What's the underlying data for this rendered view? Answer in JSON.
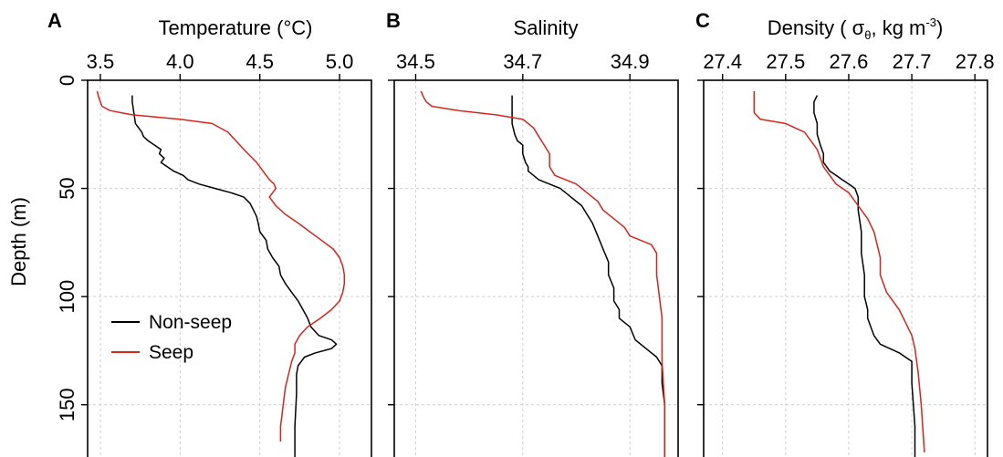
{
  "chart_data": [
    {
      "type": "line",
      "panel": "A",
      "title": "Temperature (°C)",
      "ylabel": "Depth (m)",
      "xlim": [
        3.42,
        5.2
      ],
      "ylim": [
        0,
        175
      ],
      "y_inverted": true,
      "x_axis_position": "top",
      "grid": true,
      "xticks": [
        "3.5",
        "4.0",
        "4.5",
        "5.0"
      ],
      "yticks": [
        "0",
        "50",
        "100",
        "150"
      ],
      "legend": {
        "position": "bottom-left",
        "entries": [
          "Non-seep",
          "Seep"
        ]
      },
      "series": [
        {
          "name": "Non-seep",
          "color": "#000000",
          "x": [
            3.7,
            3.7,
            3.71,
            3.72,
            3.74,
            3.76,
            3.77,
            3.8,
            3.84,
            3.88,
            3.87,
            3.9,
            3.88,
            3.92,
            3.96,
            4.02,
            4.05,
            4.12,
            4.22,
            4.32,
            4.4,
            4.44,
            4.46,
            4.48,
            4.49,
            4.5,
            4.54,
            4.55,
            4.58,
            4.62,
            4.63,
            4.66,
            4.7,
            4.74,
            4.77,
            4.8,
            4.82,
            4.87,
            4.95,
            4.98,
            4.95,
            4.85,
            4.78,
            4.74,
            4.73,
            4.73,
            4.72,
            4.72
          ],
          "y": [
            7,
            10,
            15,
            20,
            22,
            24,
            26,
            28,
            30,
            32,
            34,
            36,
            38,
            40,
            42,
            44,
            46,
            48,
            50,
            52,
            54,
            57,
            60,
            63,
            66,
            70,
            74,
            78,
            82,
            86,
            90,
            94,
            98,
            102,
            106,
            110,
            114,
            118,
            120,
            122,
            124,
            126,
            128,
            132,
            136,
            145,
            160,
            175
          ]
        },
        {
          "name": "Seep",
          "color": "#d7251c",
          "x": [
            3.48,
            3.49,
            3.5,
            3.51,
            3.56,
            3.7,
            4.0,
            4.2,
            4.3,
            4.35,
            4.4,
            4.48,
            4.52,
            4.56,
            4.59,
            4.6,
            4.56,
            4.6,
            4.66,
            4.74,
            4.85,
            4.96,
            5.0,
            5.02,
            5.03,
            5.03,
            5.02,
            5.0,
            4.95,
            4.88,
            4.8,
            4.75,
            4.72,
            4.72,
            4.7,
            4.68,
            4.66,
            4.65,
            4.64,
            4.63,
            4.63
          ],
          "y": [
            5,
            8,
            10,
            12,
            14,
            16,
            18,
            20,
            24,
            28,
            32,
            38,
            42,
            46,
            48,
            50,
            54,
            58,
            62,
            66,
            72,
            78,
            82,
            86,
            90,
            94,
            98,
            102,
            106,
            110,
            114,
            118,
            122,
            126,
            130,
            136,
            142,
            148,
            154,
            160,
            167
          ]
        }
      ]
    },
    {
      "type": "line",
      "panel": "B",
      "title": "Salinity",
      "xlim": [
        34.46,
        34.99
      ],
      "ylim": [
        0,
        175
      ],
      "y_inverted": true,
      "x_axis_position": "top",
      "grid": true,
      "xticks": [
        "34.5",
        "34.7",
        "34.9"
      ],
      "yticks": [
        "0",
        "50",
        "100",
        "150"
      ],
      "series": [
        {
          "name": "Non-seep",
          "color": "#000000",
          "x": [
            34.68,
            34.68,
            34.68,
            34.68,
            34.685,
            34.69,
            34.7,
            34.7,
            34.705,
            34.71,
            34.71,
            34.72,
            34.73,
            34.75,
            34.77,
            34.78,
            34.79,
            34.81,
            34.82,
            34.83,
            34.84,
            34.85,
            34.86,
            34.86,
            34.87,
            34.87,
            34.88,
            34.88,
            34.9,
            34.91,
            34.93,
            34.95,
            34.96,
            34.96,
            34.965,
            34.965,
            34.965
          ],
          "y": [
            7,
            10,
            15,
            20,
            25,
            28,
            30,
            34,
            38,
            40,
            42,
            44,
            46,
            48,
            50,
            52,
            54,
            58,
            62,
            66,
            72,
            78,
            84,
            90,
            96,
            102,
            106,
            110,
            114,
            120,
            124,
            128,
            132,
            140,
            150,
            165,
            175
          ]
        },
        {
          "name": "Seep",
          "color": "#d7251c",
          "x": [
            34.51,
            34.515,
            34.52,
            34.53,
            34.58,
            34.65,
            34.7,
            34.72,
            34.73,
            34.74,
            34.75,
            34.75,
            34.76,
            34.78,
            34.8,
            34.82,
            34.84,
            34.85,
            34.87,
            34.89,
            34.9,
            34.94,
            34.95,
            34.95,
            34.955,
            34.96,
            34.96,
            34.96,
            34.965,
            34.965
          ],
          "y": [
            5,
            8,
            10,
            12,
            14,
            16,
            18,
            22,
            26,
            30,
            34,
            40,
            44,
            46,
            48,
            52,
            56,
            60,
            64,
            68,
            72,
            76,
            80,
            90,
            100,
            110,
            120,
            130,
            150,
            175
          ]
        }
      ]
    },
    {
      "type": "line",
      "panel": "C",
      "title": "Density ( σθ, kg m-3)",
      "title_parts": {
        "prefix": "Density ( ",
        "sigma": "σ",
        "sub": "θ",
        "mid": ", kg m",
        "sup": "-3",
        "suffix": ")"
      },
      "xlim": [
        27.37,
        27.82
      ],
      "ylim": [
        0,
        175
      ],
      "y_inverted": true,
      "x_axis_position": "top",
      "grid": true,
      "xticks": [
        "27.4",
        "27.5",
        "27.6",
        "27.7",
        "27.8"
      ],
      "yticks": [
        "0",
        "50",
        "100",
        "150"
      ],
      "series": [
        {
          "name": "Non-seep",
          "color": "#000000",
          "x": [
            27.55,
            27.545,
            27.545,
            27.55,
            27.55,
            27.555,
            27.56,
            27.56,
            27.57,
            27.58,
            27.59,
            27.6,
            27.61,
            27.615,
            27.615,
            27.62,
            27.62,
            27.625,
            27.625,
            27.63,
            27.63,
            27.635,
            27.64,
            27.65,
            27.68,
            27.7,
            27.7,
            27.705,
            27.705
          ],
          "y": [
            7,
            10,
            15,
            20,
            25,
            30,
            34,
            38,
            42,
            44,
            46,
            48,
            50,
            54,
            60,
            70,
            80,
            90,
            100,
            106,
            110,
            114,
            118,
            122,
            126,
            130,
            140,
            160,
            175
          ]
        },
        {
          "name": "Seep",
          "color": "#d7251c",
          "x": [
            27.45,
            27.45,
            27.45,
            27.46,
            27.5,
            27.53,
            27.54,
            27.55,
            27.555,
            27.56,
            27.57,
            27.58,
            27.6,
            27.61,
            27.62,
            27.63,
            27.64,
            27.645,
            27.65,
            27.65,
            27.66,
            27.68,
            27.69,
            27.7,
            27.705,
            27.71,
            27.715,
            27.72
          ],
          "y": [
            5,
            10,
            15,
            18,
            20,
            24,
            28,
            32,
            36,
            40,
            44,
            48,
            52,
            56,
            60,
            64,
            70,
            76,
            82,
            90,
            98,
            106,
            112,
            118,
            124,
            135,
            150,
            172
          ]
        }
      ]
    }
  ]
}
